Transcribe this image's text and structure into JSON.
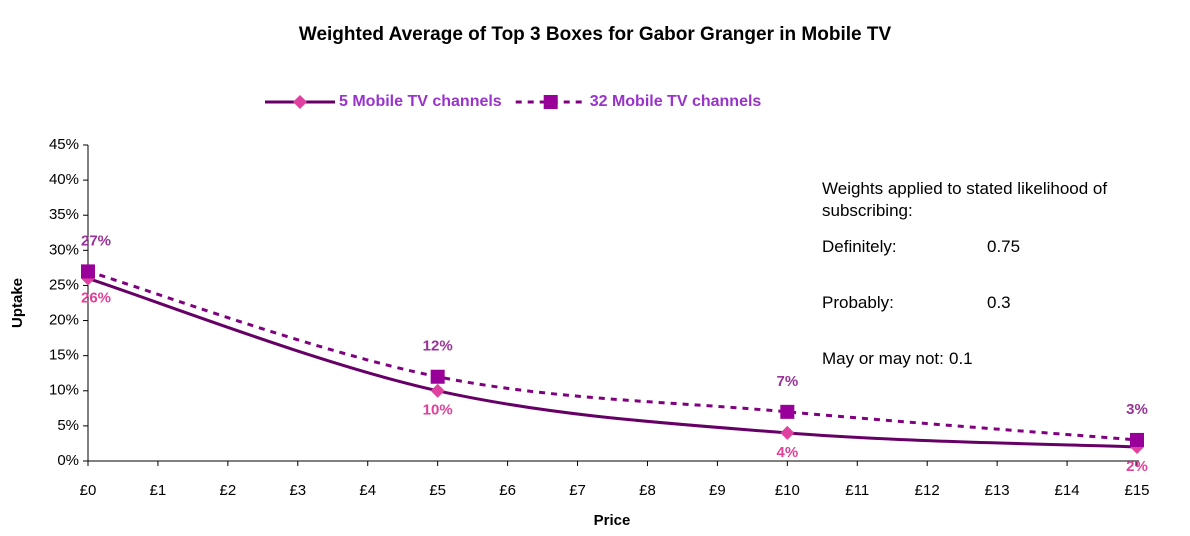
{
  "chart_data": {
    "type": "line",
    "title": "Weighted Average of Top 3 Boxes for Gabor Granger in Mobile TV",
    "x_label": "Price",
    "y_label": "Uptake",
    "x": [
      0,
      5,
      10,
      15
    ],
    "series": [
      {
        "name": "5 Mobile TV channels",
        "color": "#660066",
        "marker_color": "#e040a0",
        "label_color": "#e0409a",
        "marker": "diamond",
        "dashed": false,
        "values": [
          26,
          10,
          4,
          2
        ],
        "value_labels": [
          "26%",
          "10%",
          "4%",
          "2%"
        ]
      },
      {
        "name": "32 Mobile TV channels",
        "color": "#800080",
        "marker_color": "#990099",
        "label_color": "#993399",
        "marker": "square",
        "dashed": true,
        "values": [
          27,
          12,
          7,
          3
        ],
        "value_labels": [
          "27%",
          "12%",
          "7%",
          "3%"
        ]
      }
    ],
    "xlim": [
      0,
      15
    ],
    "xticks": [
      {
        "value": 0,
        "label": "£0"
      },
      {
        "value": 1,
        "label": "£1"
      },
      {
        "value": 2,
        "label": "£2"
      },
      {
        "value": 3,
        "label": "£3"
      },
      {
        "value": 4,
        "label": "£4"
      },
      {
        "value": 5,
        "label": "£5"
      },
      {
        "value": 6,
        "label": "£6"
      },
      {
        "value": 7,
        "label": "£7"
      },
      {
        "value": 8,
        "label": "£8"
      },
      {
        "value": 9,
        "label": "£9"
      },
      {
        "value": 10,
        "label": "£10"
      },
      {
        "value": 11,
        "label": "£11"
      },
      {
        "value": 12,
        "label": "£12"
      },
      {
        "value": 13,
        "label": "£13"
      },
      {
        "value": 14,
        "label": "£14"
      },
      {
        "value": 15,
        "label": "£15"
      }
    ],
    "ylim": [
      0,
      45
    ],
    "yticks": [
      {
        "value": 0,
        "label": "0%"
      },
      {
        "value": 5,
        "label": "5%"
      },
      {
        "value": 10,
        "label": "10%"
      },
      {
        "value": 15,
        "label": "15%"
      },
      {
        "value": 20,
        "label": "20%"
      },
      {
        "value": 25,
        "label": "25%"
      },
      {
        "value": 30,
        "label": "30%"
      },
      {
        "value": 35,
        "label": "35%"
      },
      {
        "value": 40,
        "label": "40%"
      },
      {
        "value": 45,
        "label": "45%"
      }
    ],
    "grid": false,
    "legend": "top",
    "annotation": {
      "text": "Weights applied to stated likelihood of subscribing:",
      "weights": [
        {
          "label": "Definitely:",
          "value": 0.75
        },
        {
          "label": "Probably:",
          "value": 0.3
        },
        {
          "label": "May or may not:",
          "value": 0.1
        }
      ]
    }
  }
}
